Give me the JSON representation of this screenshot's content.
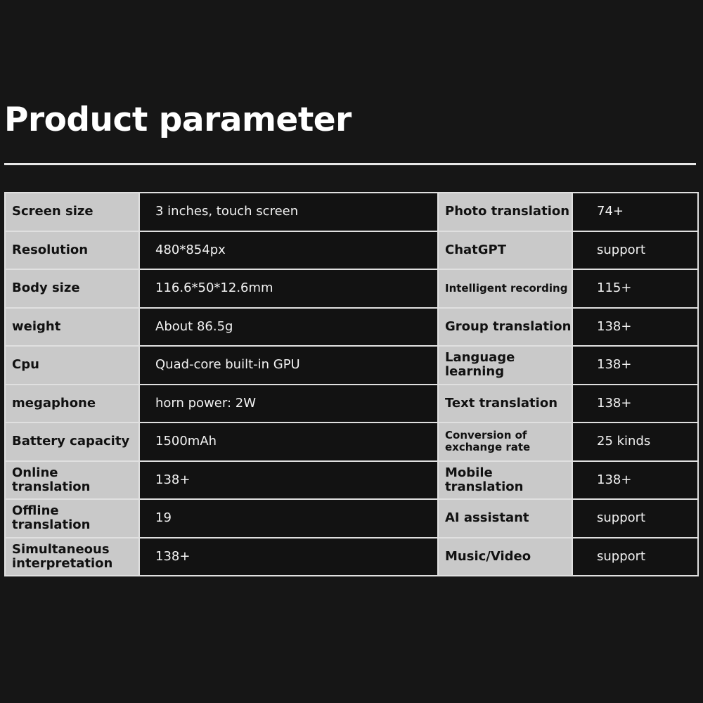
{
  "title": "Product parameter",
  "rows": [
    {
      "k1": "Screen size",
      "v1": "3 inches, touch screen",
      "k2": "Photo translation",
      "v2": "74+"
    },
    {
      "k1": "Resolution",
      "v1": "480*854px",
      "k2": "ChatGPT",
      "v2": "support"
    },
    {
      "k1": "Body size",
      "v1": "116.6*50*12.6mm",
      "k2": "Intelligent recording",
      "v2": "115+"
    },
    {
      "k1": "weight",
      "v1": "About 86.5g",
      "k2": "Group translation",
      "v2": "138+"
    },
    {
      "k1": "Cpu",
      "v1": "Quad-core built-in GPU",
      "k2": "Language learning",
      "v2": "138+"
    },
    {
      "k1": "megaphone",
      "v1": "horn power: 2W",
      "k2": "Text translation",
      "v2": "138+"
    },
    {
      "k1": "Battery capacity",
      "v1": "1500mAh",
      "k2": "Conversion of exchange rate",
      "v2": "25 kinds"
    },
    {
      "k1": "Online translation",
      "v1": "138+",
      "k2": "Mobile translation",
      "v2": "138+"
    },
    {
      "k1": "Offline translation",
      "v1": "19",
      "k2": "AI assistant",
      "v2": "support"
    },
    {
      "k1": "Simultaneous interpretation",
      "v1": "138+",
      "k2": "Music/Video",
      "v2": "support"
    }
  ]
}
